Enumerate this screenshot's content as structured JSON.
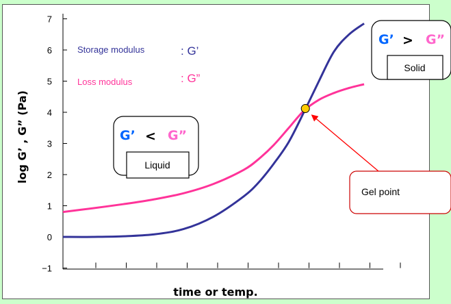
{
  "chart_data": {
    "type": "line",
    "xlabel": "time   or temp.",
    "ylabel": "log G’ , G” (Pa)",
    "ylim": [
      -1,
      7
    ],
    "yticks": [
      "7",
      "6",
      "5",
      "4",
      "3",
      "2",
      "1",
      "0",
      "−1"
    ],
    "x_ticks_count": 11,
    "series": [
      {
        "name": "Storage modulus",
        "symbol": ": G’",
        "color": "#333399",
        "x": [
          0,
          1,
          2,
          3,
          4,
          5,
          6,
          6.5,
          7,
          7.5,
          8,
          8.5,
          9,
          9.5,
          10
        ],
        "y": [
          0.0,
          0.0,
          0.02,
          0.08,
          0.25,
          0.65,
          1.3,
          1.75,
          2.35,
          3.05,
          4.0,
          5.0,
          5.95,
          6.5,
          6.85
        ]
      },
      {
        "name": "Loss modulus",
        "symbol": ": G”",
        "color": "#ff3399",
        "x": [
          0,
          1,
          2,
          3,
          4,
          5,
          6,
          6.5,
          7,
          7.5,
          8,
          8.5,
          9,
          9.5,
          10
        ],
        "y": [
          0.8,
          0.92,
          1.05,
          1.2,
          1.4,
          1.7,
          2.15,
          2.5,
          2.95,
          3.5,
          4.05,
          4.4,
          4.62,
          4.78,
          4.9
        ]
      }
    ],
    "annotations": {
      "gel_point": {
        "label": "Gel point",
        "x": 8.05,
        "y": 4.12,
        "marker_color": "#ffcc00"
      },
      "liquid": {
        "label": "Liquid",
        "left": "G’",
        "op": "<",
        "right": "G”"
      },
      "solid": {
        "label": "Solid",
        "left": "G’",
        "op": ">",
        "right": "G”"
      }
    }
  },
  "colors": {
    "background": "#ccffcc",
    "g_prime_text": "#0066ff",
    "g_double_prime_text": "#ff66cc",
    "arrow": "#ff0000",
    "gel_box_border": "#cc0000"
  }
}
